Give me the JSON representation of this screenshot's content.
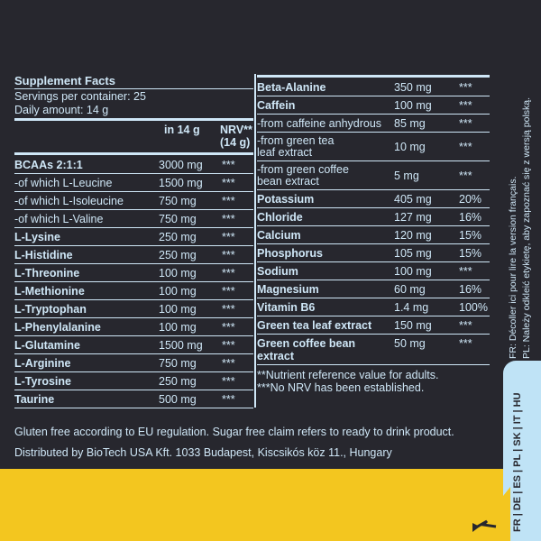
{
  "header": {
    "title": "Supplement Facts",
    "servings": "Servings per container: 25",
    "daily": "Daily amount: 14 g"
  },
  "table_header": {
    "amount": "in 14 g",
    "nrv_1": "NRV**",
    "nrv_2": "(14 g)"
  },
  "left_rows": [
    {
      "name": "BCAAs 2:1:1",
      "amount": "3000 mg",
      "nrv": "***",
      "bold": true
    },
    {
      "name": "-of which L-Leucine",
      "amount": "1500 mg",
      "nrv": "***"
    },
    {
      "name": "-of which L-Isoleucine",
      "amount": "750 mg",
      "nrv": "***"
    },
    {
      "name": "-of which L-Valine",
      "amount": "750 mg",
      "nrv": "***"
    },
    {
      "name": "L-Lysine",
      "amount": "250 mg",
      "nrv": "***",
      "bold": true
    },
    {
      "name": "L-Histidine",
      "amount": "250 mg",
      "nrv": "***",
      "bold": true
    },
    {
      "name": "L-Threonine",
      "amount": "100 mg",
      "nrv": "***",
      "bold": true
    },
    {
      "name": "L-Methionine",
      "amount": "100 mg",
      "nrv": "***",
      "bold": true
    },
    {
      "name": "L-Tryptophan",
      "amount": "100 mg",
      "nrv": "***",
      "bold": true
    },
    {
      "name": "L-Phenylalanine",
      "amount": "100 mg",
      "nrv": "***",
      "bold": true
    },
    {
      "name": "L-Glutamine",
      "amount": "1500 mg",
      "nrv": "***",
      "bold": true
    },
    {
      "name": "L-Arginine",
      "amount": "750 mg",
      "nrv": "***",
      "bold": true
    },
    {
      "name": "L-Tyrosine",
      "amount": "250 mg",
      "nrv": "***",
      "bold": true
    },
    {
      "name": "Taurine",
      "amount": "500 mg",
      "nrv": "***",
      "bold": true
    }
  ],
  "right_rows": [
    {
      "name": "Beta-Alanine",
      "amount": "350 mg",
      "nrv": "***",
      "bold": true
    },
    {
      "name": "Caffein",
      "amount": "100 mg",
      "nrv": "***",
      "bold": true
    },
    {
      "name": "-from caffeine anhydrous",
      "amount": "85 mg",
      "nrv": "***"
    },
    {
      "name": "-from green tea",
      "name2": "leaf extract",
      "amount": "10 mg",
      "nrv": "***"
    },
    {
      "name": "-from green coffee",
      "name2": "bean extract",
      "amount": "5 mg",
      "nrv": "***"
    },
    {
      "name": "Potassium",
      "amount": "405 mg",
      "nrv": "20%",
      "bold": true
    },
    {
      "name": "Chloride",
      "amount": "127 mg",
      "nrv": "16%",
      "bold": true
    },
    {
      "name": "Calcium",
      "amount": "120 mg",
      "nrv": "15%",
      "bold": true
    },
    {
      "name": "Phosphorus",
      "amount": "105 mg",
      "nrv": "15%",
      "bold": true
    },
    {
      "name": "Sodium",
      "amount": "100 mg",
      "nrv": "***",
      "bold": true
    },
    {
      "name": "Magnesium",
      "amount": "60 mg",
      "nrv": "16%",
      "bold": true
    },
    {
      "name": "Vitamin B6",
      "amount": "1.4 mg",
      "nrv": "100%",
      "bold": true
    },
    {
      "name": "Green tea leaf extract",
      "amount": "150 mg",
      "nrv": "***",
      "bold": true
    },
    {
      "name": "Green coffee bean extract",
      "amount": "50 mg",
      "nrv": "***",
      "bold": true
    }
  ],
  "footnotes": {
    "nrv": "**Nutrient reference value for adults.",
    "no_nrv": "***No NRV has been established."
  },
  "bottom": {
    "gluten": "Gluten free according to EU regulation. Sugar free claim refers to ready to drink product.",
    "distributor": "Distributed by BioTech USA Kft. 1033 Budapest, Kiscsikós köz 11., Hungary"
  },
  "side": {
    "fr": "FR: Décoller ici pour lire la version français.",
    "pl": "PL: Należy odkleić etykietę, aby zapoznać się z wersją polską.",
    "languages": "FR | DE | ES | PL | SK | IT | HU"
  },
  "colors": {
    "dark": "#27272e",
    "text": "#cfe7f7",
    "yellow": "#f3c61f",
    "tab": "#bfe3f6"
  }
}
